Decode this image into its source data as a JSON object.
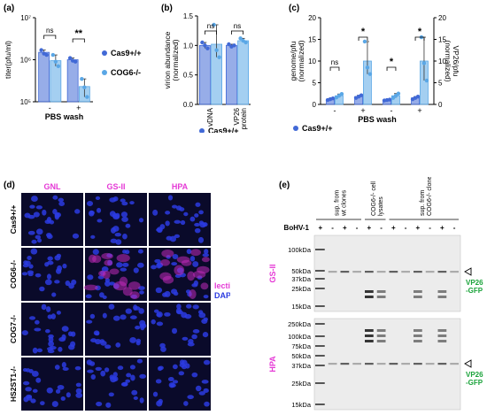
{
  "chart_data": [
    {
      "panel": "(a)",
      "type": "bar",
      "ylabel": "titer(pfu/ml)",
      "yscale": "log",
      "ylim": [
        100000,
        10000000
      ],
      "yticks": [
        "10⁵",
        "10⁶",
        "10⁷"
      ],
      "xlabel": "PBS wash",
      "categories": [
        "-",
        "+"
      ],
      "series": [
        {
          "name": "Cas9+/+",
          "values": [
            1500000,
            1000000
          ],
          "color": "#4169d6",
          "points": [
            [
              1700000,
              1400000,
              1300000
            ],
            [
              1100000,
              950000,
              900000
            ]
          ]
        },
        {
          "name": "COG6-/-",
          "values": [
            950000,
            230000
          ],
          "color": "#5aa7e6",
          "points": [
            [
              1300000,
              900000,
              700000
            ],
            [
              350000,
              220000,
              130000
            ]
          ]
        }
      ],
      "significance": [
        "ns",
        "**"
      ]
    },
    {
      "panel": "(b)",
      "type": "bar",
      "ylabel": "virion abundance\n(normalized)",
      "ylim": [
        0,
        1.5
      ],
      "yticks": [
        "0.0",
        "0.5",
        "1.0",
        "1.5"
      ],
      "categories": [
        "vDNA",
        "VP26\nprotein"
      ],
      "series": [
        {
          "name": "Cas9+/+",
          "values": [
            1.0,
            1.0
          ],
          "color": "#4169d6",
          "points": [
            [
              1.05,
              1.0,
              0.95
            ],
            [
              1.02,
              0.98,
              1.0
            ]
          ]
        },
        {
          "name": "COG6-/-",
          "values": [
            1.02,
            1.08
          ],
          "color": "#5aa7e6",
          "points": [
            [
              1.35,
              0.92,
              0.8
            ],
            [
              1.12,
              1.08,
              1.05
            ]
          ]
        }
      ],
      "significance": [
        "ns",
        "ns"
      ]
    },
    {
      "panel": "(c)",
      "type": "bar",
      "ylabel": "genome/pfu\n(normalized)",
      "y2label": "VP26/pfu\n(normalized)",
      "ylim": [
        0,
        20
      ],
      "yticks": [
        "0",
        "5",
        "10",
        "15",
        "20"
      ],
      "xlabel": "PBS wash",
      "categories": [
        "-",
        "+",
        "-",
        "+"
      ],
      "series": [
        {
          "name": "Cas9+/+",
          "values": [
            1.2,
            1.8,
            1.0,
            1.5
          ],
          "color": "#4169d6",
          "points": [
            [
              1.0,
              1.2,
              1.4
            ],
            [
              1.5,
              1.8,
              2.1
            ],
            [
              0.9,
              1.0,
              1.1
            ],
            [
              1.2,
              1.5,
              1.8
            ]
          ]
        },
        {
          "name": "COG6-/-",
          "values": [
            2.0,
            10.0,
            2.0,
            10.0
          ],
          "color": "#5aa7e6",
          "points": [
            [
              1.6,
              2.0,
              2.4
            ],
            [
              14.5,
              8.5,
              7.0
            ],
            [
              1.5,
              2.0,
              2.5
            ],
            [
              15.5,
              9.5,
              5.5
            ]
          ]
        }
      ],
      "significance": [
        "ns",
        "*",
        "*",
        "*"
      ]
    }
  ],
  "panel_labels": {
    "a": "(a)",
    "b": "(b)",
    "c": "(c)",
    "d": "(d)",
    "e": "(e)"
  },
  "legend": {
    "cas9": "Cas9+/+",
    "cog6": "COG6-/-"
  },
  "microscopy": {
    "columns": [
      "GNL",
      "GS-II",
      "HPA"
    ],
    "rows": [
      "Cas9+/+",
      "COG6-/-",
      "COG7-/-",
      "HS2ST1-/-"
    ],
    "legend_lectin": "lectin",
    "legend_dapi": "DAPI"
  },
  "blot": {
    "group_labels": [
      "sup. from\nwt clones",
      "COG6-/- cell\nlysates",
      "sup. from\nCOG6-/- clones"
    ],
    "infection_label": "BoHV-1",
    "lanes": [
      "+",
      "-",
      "+",
      "-",
      "+",
      "-",
      "+",
      "-",
      "+",
      "-",
      "+",
      "-"
    ],
    "top_panel": {
      "lectin": "GS-II",
      "markers": [
        "100kDa",
        "50kDa",
        "37kDa",
        "25kDa",
        "15kDa"
      ]
    },
    "bottom_panel": {
      "lectin": "HPA",
      "markers": [
        "250kDa",
        "100kDa",
        "75kDa",
        "50kDa",
        "37kDa",
        "25kDa",
        "15kDa"
      ]
    },
    "arrow_label": "VP26\n-GFP",
    "colors": {
      "gs2": "#e53ad6",
      "hpa": "#e53ad6",
      "vp26": "#1aa33a"
    }
  }
}
